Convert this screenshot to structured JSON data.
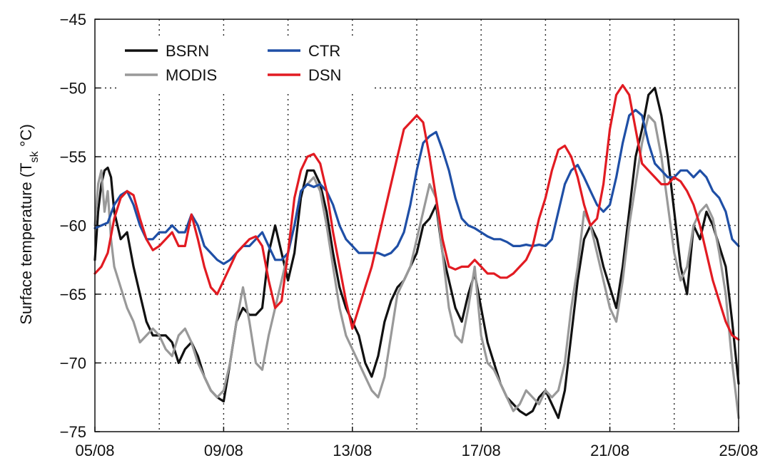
{
  "chart_data": {
    "type": "line",
    "title": "",
    "ylabel": "Surface temperature (T",
    "ylabel_sub": "sk",
    "ylabel_unit": " °C)",
    "xlabel": "",
    "xlim": [
      5,
      25
    ],
    "ylim": [
      -75,
      -45
    ],
    "xticks": [
      5,
      9,
      13,
      17,
      21,
      25
    ],
    "xticklabels": [
      "05/08",
      "09/08",
      "13/08",
      "17/08",
      "21/08",
      "25/08"
    ],
    "xgrid": [
      7,
      9,
      11,
      13,
      15,
      17,
      19,
      21,
      23
    ],
    "yticks": [
      -75,
      -70,
      -65,
      -60,
      -55,
      -50,
      -45
    ],
    "yticklabels": [
      "−75",
      "−70",
      "−65",
      "−60",
      "−55",
      "−50",
      "−45"
    ],
    "grid": true,
    "legend": "top-left",
    "series": [
      {
        "name": "BSRN",
        "color": "#111111",
        "x": [
          5.0,
          5.1,
          5.2,
          5.3,
          5.4,
          5.5,
          5.6,
          5.8,
          6.0,
          6.2,
          6.4,
          6.6,
          6.8,
          7.0,
          7.2,
          7.4,
          7.6,
          7.8,
          8.0,
          8.2,
          8.4,
          8.6,
          8.8,
          9.0,
          9.2,
          9.4,
          9.6,
          9.8,
          10.0,
          10.2,
          10.4,
          10.6,
          10.8,
          11.0,
          11.2,
          11.4,
          11.6,
          11.8,
          12.0,
          12.2,
          12.4,
          12.6,
          12.8,
          13.0,
          13.2,
          13.4,
          13.6,
          13.8,
          14.0,
          14.2,
          14.4,
          14.6,
          14.8,
          15.0,
          15.2,
          15.4,
          15.6,
          15.8,
          16.0,
          16.2,
          16.4,
          16.6,
          16.8,
          17.0,
          17.2,
          17.4,
          17.6,
          17.8,
          18.0,
          18.2,
          18.4,
          18.6,
          18.8,
          19.0,
          19.2,
          19.4,
          19.6,
          19.8,
          20.0,
          20.2,
          20.4,
          20.6,
          20.8,
          21.0,
          21.2,
          21.4,
          21.6,
          21.8,
          22.0,
          22.2,
          22.4,
          22.6,
          22.8,
          23.0,
          23.2,
          23.4,
          23.6,
          23.8,
          24.0,
          24.2,
          24.4,
          24.6,
          24.8,
          25.0
        ],
        "values": [
          -62.5,
          -59.0,
          -57.0,
          -56.0,
          -55.8,
          -56.5,
          -59.0,
          -61.0,
          -60.5,
          -63.0,
          -65.0,
          -67.0,
          -68.0,
          -68.0,
          -68.0,
          -68.5,
          -70.0,
          -69.0,
          -68.5,
          -69.5,
          -71.0,
          -72.0,
          -72.5,
          -72.8,
          -70.0,
          -67.0,
          -66.0,
          -66.5,
          -66.5,
          -66.0,
          -62.0,
          -60.0,
          -62.0,
          -64.0,
          -62.0,
          -58.0,
          -56.0,
          -56.0,
          -57.0,
          -59.0,
          -62.0,
          -64.5,
          -66.0,
          -67.0,
          -68.0,
          -70.0,
          -71.0,
          -69.5,
          -67.0,
          -65.5,
          -64.5,
          -64.0,
          -63.0,
          -62.0,
          -60.0,
          -59.5,
          -58.5,
          -62.0,
          -64.0,
          -66.0,
          -67.0,
          -65.0,
          -63.5,
          -66.0,
          -68.5,
          -70.0,
          -71.5,
          -72.5,
          -73.0,
          -73.5,
          -73.8,
          -73.5,
          -72.5,
          -72.0,
          -73.0,
          -74.0,
          -72.0,
          -68.0,
          -64.0,
          -61.0,
          -60.0,
          -61.0,
          -63.0,
          -64.5,
          -66.0,
          -63.0,
          -59.0,
          -55.0,
          -53.0,
          -50.5,
          -50.0,
          -52.0,
          -55.0,
          -59.0,
          -63.0,
          -65.0,
          -60.0,
          -61.0,
          -59.0,
          -60.0,
          -61.5,
          -63.0,
          -67.0,
          -71.5
        ]
      },
      {
        "name": "MODIS",
        "color": "#999999",
        "x": [
          5.0,
          5.1,
          5.2,
          5.3,
          5.4,
          5.5,
          5.6,
          5.8,
          6.0,
          6.2,
          6.4,
          6.6,
          6.8,
          7.0,
          7.2,
          7.4,
          7.6,
          7.8,
          8.0,
          8.2,
          8.4,
          8.6,
          8.8,
          9.0,
          9.2,
          9.4,
          9.6,
          9.8,
          10.0,
          10.2,
          10.4,
          10.6,
          10.8,
          11.0,
          11.2,
          11.4,
          11.6,
          11.8,
          12.0,
          12.2,
          12.4,
          12.6,
          12.8,
          13.0,
          13.2,
          13.4,
          13.6,
          13.8,
          14.0,
          14.2,
          14.4,
          14.6,
          14.8,
          15.0,
          15.2,
          15.4,
          15.6,
          15.8,
          16.0,
          16.2,
          16.4,
          16.6,
          16.8,
          17.0,
          17.2,
          17.4,
          17.6,
          17.8,
          18.0,
          18.2,
          18.4,
          18.6,
          18.8,
          19.0,
          19.2,
          19.4,
          19.6,
          19.8,
          20.0,
          20.2,
          20.4,
          20.6,
          20.8,
          21.0,
          21.2,
          21.4,
          21.6,
          21.8,
          22.0,
          22.2,
          22.4,
          22.6,
          22.8,
          23.0,
          23.2,
          23.4,
          23.6,
          23.8,
          24.0,
          24.2,
          24.4,
          24.6,
          24.8,
          25.0
        ],
        "values": [
          -60.0,
          -57.0,
          -56.0,
          -59.0,
          -57.5,
          -61.0,
          -63.0,
          -64.5,
          -66.0,
          -67.0,
          -68.5,
          -68.0,
          -67.5,
          -68.0,
          -69.0,
          -69.5,
          -68.0,
          -67.5,
          -68.5,
          -70.0,
          -71.0,
          -72.0,
          -72.5,
          -72.0,
          -70.0,
          -67.0,
          -64.5,
          -67.0,
          -70.0,
          -70.5,
          -68.0,
          -66.0,
          -64.0,
          -62.0,
          -60.0,
          -57.5,
          -57.0,
          -56.5,
          -57.5,
          -60.0,
          -63.0,
          -66.0,
          -68.0,
          -69.0,
          -70.0,
          -71.0,
          -72.0,
          -72.5,
          -71.0,
          -68.0,
          -65.0,
          -64.0,
          -63.0,
          -61.0,
          -59.0,
          -57.0,
          -58.0,
          -62.0,
          -66.0,
          -68.0,
          -68.5,
          -66.0,
          -63.0,
          -68.0,
          -70.0,
          -70.5,
          -71.5,
          -72.5,
          -73.5,
          -73.0,
          -72.0,
          -72.5,
          -73.0,
          -72.0,
          -72.5,
          -72.0,
          -70.0,
          -66.0,
          -63.0,
          -59.0,
          -60.0,
          -62.0,
          -64.0,
          -66.0,
          -67.0,
          -64.0,
          -60.0,
          -57.0,
          -54.0,
          -52.0,
          -52.5,
          -55.0,
          -58.5,
          -62.0,
          -64.0,
          -63.0,
          -60.0,
          -59.0,
          -58.5,
          -59.5,
          -62.0,
          -65.0,
          -70.0,
          -74.0
        ]
      },
      {
        "name": "CTR",
        "color": "#1f4fa6",
        "x": [
          5.0,
          5.2,
          5.4,
          5.6,
          5.8,
          6.0,
          6.2,
          6.4,
          6.6,
          6.8,
          7.0,
          7.2,
          7.4,
          7.6,
          7.8,
          8.0,
          8.2,
          8.4,
          8.6,
          8.8,
          9.0,
          9.2,
          9.4,
          9.6,
          9.8,
          10.0,
          10.2,
          10.4,
          10.6,
          10.8,
          11.0,
          11.2,
          11.4,
          11.6,
          11.8,
          12.0,
          12.2,
          12.4,
          12.6,
          12.8,
          13.0,
          13.2,
          13.4,
          13.6,
          13.8,
          14.0,
          14.2,
          14.4,
          14.6,
          14.8,
          15.0,
          15.2,
          15.4,
          15.6,
          15.8,
          16.0,
          16.2,
          16.4,
          16.6,
          16.8,
          17.0,
          17.2,
          17.4,
          17.6,
          17.8,
          18.0,
          18.2,
          18.4,
          18.6,
          18.8,
          19.0,
          19.2,
          19.4,
          19.6,
          19.8,
          20.0,
          20.2,
          20.4,
          20.6,
          20.8,
          21.0,
          21.2,
          21.4,
          21.6,
          21.8,
          22.0,
          22.2,
          22.4,
          22.6,
          22.8,
          23.0,
          23.2,
          23.4,
          23.6,
          23.8,
          24.0,
          24.2,
          24.4,
          24.6,
          24.8,
          25.0
        ],
        "values": [
          -60.2,
          -60.0,
          -59.8,
          -58.5,
          -57.8,
          -57.5,
          -58.5,
          -60.0,
          -61.0,
          -61.0,
          -60.5,
          -60.5,
          -60.0,
          -60.5,
          -60.5,
          -59.2,
          -60.0,
          -61.5,
          -62.0,
          -62.5,
          -62.8,
          -62.5,
          -62.0,
          -61.5,
          -61.5,
          -61.0,
          -60.5,
          -61.5,
          -62.5,
          -62.5,
          -62.0,
          -60.0,
          -57.5,
          -57.0,
          -57.2,
          -57.0,
          -57.5,
          -58.5,
          -60.0,
          -61.0,
          -61.5,
          -62.0,
          -62.0,
          -62.0,
          -62.0,
          -62.2,
          -62.0,
          -61.5,
          -60.5,
          -58.5,
          -56.0,
          -54.0,
          -53.5,
          -53.2,
          -54.5,
          -56.0,
          -58.0,
          -59.5,
          -60.0,
          -60.2,
          -60.5,
          -60.8,
          -61.0,
          -61.0,
          -61.2,
          -61.5,
          -61.5,
          -61.4,
          -61.5,
          -61.4,
          -61.5,
          -61.0,
          -59.0,
          -57.0,
          -56.0,
          -55.6,
          -56.5,
          -57.5,
          -58.5,
          -59.0,
          -58.5,
          -56.5,
          -54.0,
          -52.0,
          -51.6,
          -52.0,
          -54.0,
          -55.5,
          -56.0,
          -56.5,
          -56.5,
          -56.0,
          -56.0,
          -56.5,
          -56.0,
          -56.5,
          -57.5,
          -58.0,
          -59.0,
          -61.0,
          -61.5
        ]
      },
      {
        "name": "DSN",
        "color": "#e21b22",
        "x": [
          5.0,
          5.2,
          5.4,
          5.6,
          5.8,
          6.0,
          6.2,
          6.4,
          6.6,
          6.8,
          7.0,
          7.2,
          7.4,
          7.6,
          7.8,
          8.0,
          8.2,
          8.4,
          8.6,
          8.8,
          9.0,
          9.2,
          9.4,
          9.6,
          9.8,
          10.0,
          10.2,
          10.4,
          10.6,
          10.8,
          11.0,
          11.2,
          11.4,
          11.6,
          11.8,
          12.0,
          12.2,
          12.4,
          12.6,
          12.8,
          13.0,
          13.2,
          13.4,
          13.6,
          13.8,
          14.0,
          14.2,
          14.4,
          14.6,
          14.8,
          15.0,
          15.2,
          15.4,
          15.6,
          15.8,
          16.0,
          16.2,
          16.4,
          16.6,
          16.8,
          17.0,
          17.2,
          17.4,
          17.6,
          17.8,
          18.0,
          18.2,
          18.4,
          18.6,
          18.8,
          19.0,
          19.2,
          19.4,
          19.6,
          19.8,
          20.0,
          20.2,
          20.4,
          20.6,
          20.8,
          21.0,
          21.2,
          21.4,
          21.6,
          21.8,
          22.0,
          22.2,
          22.4,
          22.6,
          22.8,
          23.0,
          23.2,
          23.4,
          23.6,
          23.8,
          24.0,
          24.2,
          24.4,
          24.6,
          24.8,
          25.0
        ],
        "values": [
          -63.5,
          -63.0,
          -62.0,
          -59.5,
          -58.0,
          -57.5,
          -57.8,
          -59.5,
          -61.0,
          -61.8,
          -61.5,
          -61.0,
          -60.5,
          -61.5,
          -61.5,
          -59.2,
          -61.0,
          -63.0,
          -64.5,
          -65.0,
          -64.0,
          -63.0,
          -62.0,
          -61.5,
          -61.0,
          -60.8,
          -61.5,
          -64.0,
          -66.0,
          -65.5,
          -62.0,
          -58.0,
          -56.0,
          -55.0,
          -54.8,
          -55.5,
          -57.5,
          -60.5,
          -63.0,
          -65.5,
          -67.5,
          -66.0,
          -64.5,
          -63.0,
          -61.0,
          -59.0,
          -57.0,
          -55.0,
          -53.0,
          -52.5,
          -52.0,
          -52.5,
          -55.0,
          -58.0,
          -61.0,
          -63.0,
          -63.2,
          -63.0,
          -63.0,
          -62.5,
          -63.0,
          -63.5,
          -63.5,
          -63.8,
          -63.8,
          -63.5,
          -63.0,
          -62.5,
          -61.5,
          -59.5,
          -58.0,
          -56.0,
          -54.5,
          -54.2,
          -55.0,
          -56.5,
          -58.5,
          -60.0,
          -59.5,
          -57.0,
          -53.0,
          -50.5,
          -49.8,
          -50.5,
          -53.0,
          -55.5,
          -56.0,
          -56.5,
          -57.0,
          -57.0,
          -56.5,
          -56.8,
          -57.5,
          -58.5,
          -60.0,
          -62.0,
          -64.0,
          -65.5,
          -67.0,
          -68.0,
          -68.3
        ]
      }
    ]
  }
}
